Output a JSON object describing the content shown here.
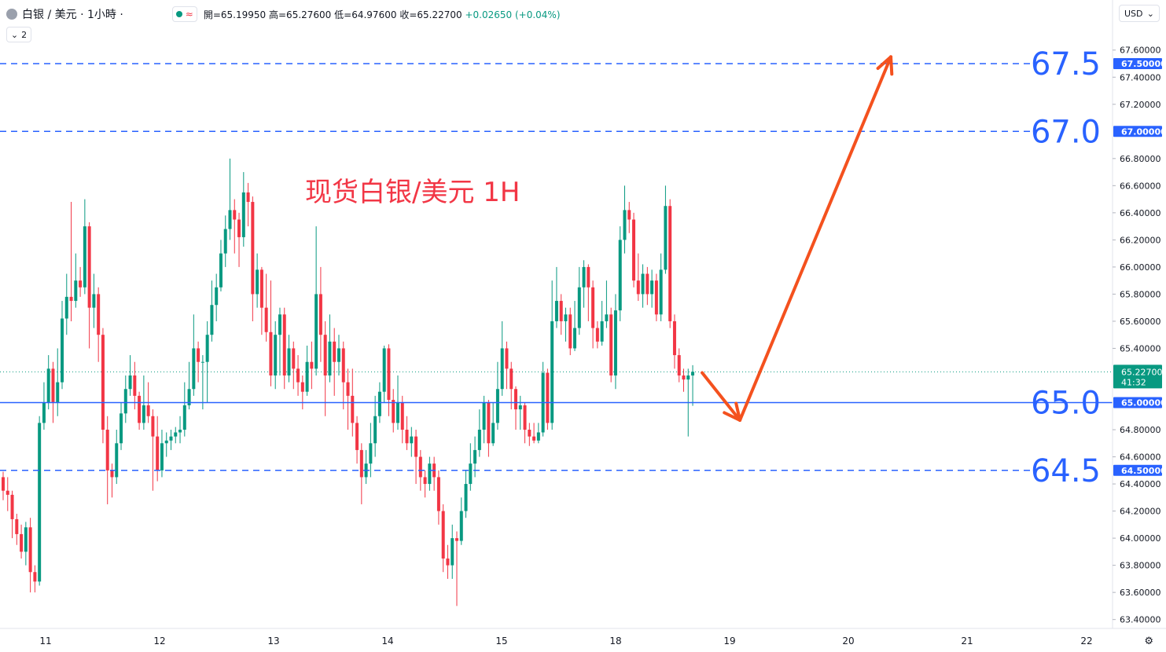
{
  "header": {
    "symbol_title": "白银 / 美元 · 1小時 ·",
    "open": "開=65.19950",
    "high": "高=65.27600",
    "low": "低=64.97600",
    "close": "收=65.22700",
    "change": "+0.02650 (+0.04%)",
    "wave_glyph": "≈"
  },
  "indicator_count": "2",
  "currency": "USD",
  "colors": {
    "up": "#089981",
    "down": "#f23645",
    "level_line": "#2962ff",
    "arrow": "#f4511e",
    "annotation": "#f23645"
  },
  "chart_data": {
    "type": "candlestick",
    "title": "现货白银/美元 1H",
    "ylim": [
      63.3,
      67.7
    ],
    "y_ticks": [
      "67.60000",
      "67.40000",
      "67.20000",
      "66.80000",
      "66.60000",
      "66.40000",
      "66.20000",
      "66.00000",
      "65.80000",
      "65.60000",
      "65.40000",
      "64.80000",
      "64.60000",
      "64.40000",
      "64.20000",
      "64.00000",
      "63.80000",
      "63.60000",
      "63.40000"
    ],
    "x_ticks": [
      "11",
      "12",
      "13",
      "14",
      "15",
      "18",
      "19",
      "20",
      "21",
      "22"
    ],
    "horizontal_levels": [
      {
        "value": 67.5,
        "label": "67.5",
        "tag": "67.50000",
        "style": "dashed"
      },
      {
        "value": 67.0,
        "label": "67.0",
        "tag": "67.00000",
        "style": "dashed"
      },
      {
        "value": 65.0,
        "label": "65.0",
        "tag": "65.00000",
        "style": "solid"
      },
      {
        "value": 64.5,
        "label": "64.5",
        "tag": "64.50000",
        "style": "dashed"
      }
    ],
    "last_price": {
      "value": 65.227,
      "tag": "65.22700",
      "countdown": "41:32"
    },
    "projection_path": [
      [
        0,
        65.22
      ],
      [
        8,
        64.87
      ],
      [
        40,
        67.55
      ]
    ],
    "candles": [
      [
        64.45,
        64.35,
        64.49,
        64.28
      ],
      [
        64.35,
        64.32,
        64.45,
        64.2
      ],
      [
        64.32,
        64.14,
        64.35,
        64.0
      ],
      [
        64.14,
        64.03,
        64.18,
        63.95
      ],
      [
        64.03,
        63.9,
        64.1,
        63.85
      ],
      [
        63.9,
        64.08,
        64.12,
        63.8
      ],
      [
        64.08,
        63.75,
        64.15,
        63.6
      ],
      [
        63.75,
        63.68,
        63.8,
        63.6
      ],
      [
        63.68,
        64.85,
        64.9,
        63.65
      ],
      [
        64.85,
        65.0,
        65.15,
        64.8
      ],
      [
        65.0,
        65.25,
        65.35,
        64.95
      ],
      [
        65.25,
        65.0,
        65.3,
        64.85
      ],
      [
        65.0,
        65.15,
        65.4,
        64.9
      ],
      [
        65.15,
        65.62,
        65.75,
        65.1
      ],
      [
        65.62,
        65.78,
        65.95,
        65.5
      ],
      [
        65.78,
        65.75,
        66.48,
        65.6
      ],
      [
        65.75,
        65.9,
        66.1,
        65.7
      ],
      [
        65.9,
        65.85,
        66.0,
        65.78
      ],
      [
        65.85,
        66.3,
        66.5,
        65.8
      ],
      [
        66.3,
        65.7,
        66.33,
        65.4
      ],
      [
        65.7,
        65.8,
        65.95,
        65.55
      ],
      [
        65.8,
        65.5,
        65.85,
        65.3
      ],
      [
        65.5,
        64.8,
        65.55,
        64.7
      ],
      [
        64.8,
        64.5,
        64.9,
        64.25
      ],
      [
        64.5,
        64.45,
        64.55,
        64.3
      ],
      [
        64.45,
        64.7,
        64.8,
        64.4
      ],
      [
        64.7,
        64.92,
        65.0,
        64.65
      ],
      [
        64.92,
        65.1,
        65.2,
        64.85
      ],
      [
        65.1,
        65.2,
        65.35,
        65.05
      ],
      [
        65.2,
        65.05,
        65.3,
        64.95
      ],
      [
        65.05,
        64.85,
        65.08,
        64.8
      ],
      [
        64.85,
        64.98,
        65.2,
        64.8
      ],
      [
        64.98,
        64.9,
        65.15,
        64.85
      ],
      [
        64.9,
        64.75,
        64.95,
        64.35
      ],
      [
        64.75,
        64.5,
        64.9,
        64.42
      ],
      [
        64.5,
        64.7,
        64.8,
        64.45
      ],
      [
        64.7,
        64.72,
        64.78,
        64.6
      ],
      [
        64.72,
        64.75,
        64.8,
        64.65
      ],
      [
        64.75,
        64.78,
        64.82,
        64.7
      ],
      [
        64.78,
        64.8,
        64.9,
        64.7
      ],
      [
        64.8,
        64.98,
        65.15,
        64.75
      ],
      [
        64.98,
        65.1,
        65.3,
        64.95
      ],
      [
        65.1,
        65.4,
        65.65,
        65.05
      ],
      [
        65.4,
        65.3,
        65.45,
        65.15
      ],
      [
        65.3,
        65.3,
        65.35,
        64.95
      ],
      [
        65.3,
        65.5,
        65.6,
        65.0
      ],
      [
        65.5,
        65.72,
        65.9,
        65.45
      ],
      [
        65.72,
        65.85,
        65.95,
        65.6
      ],
      [
        65.85,
        66.1,
        66.2,
        65.82
      ],
      [
        66.1,
        66.28,
        66.38,
        66.0
      ],
      [
        66.28,
        66.42,
        66.8,
        66.2
      ],
      [
        66.42,
        66.35,
        66.5,
        66.1
      ],
      [
        66.35,
        66.22,
        66.4,
        66.0
      ],
      [
        66.22,
        66.55,
        66.7,
        66.15
      ],
      [
        66.55,
        66.48,
        66.62,
        66.3
      ],
      [
        66.48,
        65.8,
        66.52,
        65.6
      ],
      [
        65.8,
        65.98,
        66.1,
        65.7
      ],
      [
        65.98,
        65.7,
        66.0,
        65.5
      ],
      [
        65.7,
        65.52,
        65.95,
        65.45
      ],
      [
        65.52,
        65.2,
        65.9,
        65.12
      ],
      [
        65.2,
        65.5,
        65.6,
        65.1
      ],
      [
        65.5,
        65.65,
        65.7,
        65.2
      ],
      [
        65.65,
        65.2,
        65.7,
        65.1
      ],
      [
        65.2,
        65.4,
        65.5,
        65.15
      ],
      [
        65.4,
        65.25,
        65.45,
        65.1
      ],
      [
        65.25,
        65.15,
        65.35,
        65.05
      ],
      [
        65.15,
        65.08,
        65.2,
        64.95
      ],
      [
        65.08,
        65.3,
        65.42,
        65.05
      ],
      [
        65.3,
        65.25,
        65.45,
        65.1
      ],
      [
        65.25,
        65.8,
        66.3,
        65.2
      ],
      [
        65.8,
        65.5,
        66.0,
        65.3
      ],
      [
        65.5,
        65.2,
        65.6,
        64.9
      ],
      [
        65.2,
        65.45,
        65.65,
        65.15
      ],
      [
        65.45,
        65.3,
        65.55,
        65.05
      ],
      [
        65.3,
        65.4,
        65.5,
        65.2
      ],
      [
        65.4,
        65.15,
        65.45,
        64.95
      ],
      [
        65.15,
        65.05,
        65.25,
        64.8
      ],
      [
        65.05,
        64.85,
        65.25,
        64.75
      ],
      [
        64.85,
        64.65,
        64.9,
        64.55
      ],
      [
        64.65,
        64.45,
        64.7,
        64.25
      ],
      [
        64.45,
        64.55,
        64.65,
        64.4
      ],
      [
        64.55,
        64.7,
        64.85,
        64.45
      ],
      [
        64.7,
        64.9,
        65.05,
        64.6
      ],
      [
        64.9,
        65.08,
        65.15,
        64.85
      ],
      [
        65.08,
        65.4,
        65.42,
        65.0
      ],
      [
        65.4,
        65.02,
        65.43,
        64.9
      ],
      [
        65.02,
        64.85,
        65.1,
        64.78
      ],
      [
        64.85,
        65.0,
        65.2,
        64.8
      ],
      [
        65.0,
        64.8,
        65.05,
        64.7
      ],
      [
        64.8,
        64.7,
        64.9,
        64.65
      ],
      [
        64.7,
        64.75,
        64.82,
        64.6
      ],
      [
        64.75,
        64.6,
        64.8,
        64.4
      ],
      [
        64.6,
        64.45,
        64.65,
        64.35
      ],
      [
        64.45,
        64.4,
        64.5,
        64.3
      ],
      [
        64.4,
        64.55,
        64.6,
        64.35
      ],
      [
        64.55,
        64.45,
        64.6,
        64.35
      ],
      [
        64.45,
        64.2,
        64.5,
        64.1
      ],
      [
        64.2,
        63.85,
        64.25,
        63.75
      ],
      [
        63.85,
        63.8,
        63.95,
        63.7
      ],
      [
        63.8,
        64.0,
        64.1,
        63.7
      ],
      [
        64.0,
        63.98,
        64.05,
        63.5
      ],
      [
        63.98,
        64.2,
        64.3,
        63.95
      ],
      [
        64.2,
        64.4,
        64.5,
        64.15
      ],
      [
        64.4,
        64.55,
        64.7,
        64.35
      ],
      [
        64.55,
        64.65,
        64.75,
        64.45
      ],
      [
        64.65,
        64.8,
        64.95,
        64.6
      ],
      [
        64.8,
        65.0,
        65.05,
        64.7
      ],
      [
        65.0,
        64.7,
        65.02,
        64.6
      ],
      [
        64.7,
        64.85,
        65.0,
        64.68
      ],
      [
        64.85,
        65.1,
        65.3,
        64.8
      ],
      [
        65.1,
        65.4,
        65.6,
        65.05
      ],
      [
        65.4,
        65.25,
        65.45,
        65.1
      ],
      [
        65.25,
        65.1,
        65.3,
        64.95
      ],
      [
        65.1,
        64.95,
        65.12,
        64.8
      ],
      [
        64.95,
        64.98,
        65.05,
        64.8
      ],
      [
        64.98,
        64.8,
        65.0,
        64.7
      ],
      [
        64.8,
        64.75,
        64.85,
        64.68
      ],
      [
        64.75,
        64.72,
        64.85,
        64.7
      ],
      [
        64.72,
        64.78,
        64.85,
        64.7
      ],
      [
        64.78,
        65.22,
        65.3,
        64.75
      ],
      [
        65.22,
        64.85,
        65.25,
        64.8
      ],
      [
        64.85,
        65.6,
        65.9,
        64.8
      ],
      [
        65.6,
        65.75,
        66.0,
        65.55
      ],
      [
        65.75,
        65.6,
        65.8,
        65.5
      ],
      [
        65.6,
        65.65,
        65.7,
        65.45
      ],
      [
        65.65,
        65.4,
        65.7,
        65.35
      ],
      [
        65.4,
        65.55,
        65.75,
        65.38
      ],
      [
        65.55,
        65.85,
        66.0,
        65.5
      ],
      [
        65.85,
        66.0,
        66.05,
        65.7
      ],
      [
        66.0,
        65.85,
        66.02,
        65.6
      ],
      [
        65.85,
        65.55,
        65.9,
        65.4
      ],
      [
        65.55,
        65.45,
        65.6,
        65.4
      ],
      [
        65.45,
        65.6,
        65.75,
        65.42
      ],
      [
        65.6,
        65.65,
        65.9,
        65.55
      ],
      [
        65.65,
        65.2,
        65.7,
        65.15
      ],
      [
        65.2,
        65.68,
        65.8,
        65.1
      ],
      [
        65.68,
        66.2,
        66.3,
        65.6
      ],
      [
        66.2,
        66.42,
        66.6,
        66.1
      ],
      [
        66.42,
        66.35,
        66.48,
        66.25
      ],
      [
        66.35,
        65.9,
        66.4,
        65.85
      ],
      [
        65.9,
        65.8,
        66.1,
        65.75
      ],
      [
        65.8,
        65.95,
        66.02,
        65.7
      ],
      [
        65.95,
        65.8,
        66.0,
        65.72
      ],
      [
        65.8,
        65.9,
        65.98,
        65.7
      ],
      [
        65.9,
        65.65,
        65.95,
        65.6
      ],
      [
        65.65,
        65.98,
        66.1,
        65.6
      ],
      [
        65.98,
        66.45,
        66.6,
        65.95
      ],
      [
        66.45,
        65.6,
        66.5,
        65.55
      ],
      [
        65.6,
        65.35,
        65.65,
        65.25
      ],
      [
        65.35,
        65.2,
        65.4,
        65.15
      ],
      [
        65.2,
        65.17,
        65.25,
        65.08
      ],
      [
        65.17,
        65.2,
        65.25,
        64.75
      ],
      [
        65.2,
        65.227,
        65.276,
        64.976
      ]
    ]
  }
}
